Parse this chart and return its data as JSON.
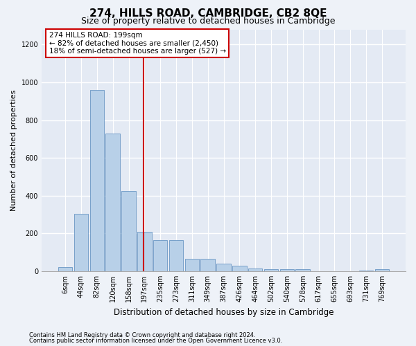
{
  "title": "274, HILLS ROAD, CAMBRIDGE, CB2 8QE",
  "subtitle": "Size of property relative to detached houses in Cambridge",
  "xlabel": "Distribution of detached houses by size in Cambridge",
  "ylabel": "Number of detached properties",
  "footnote1": "Contains HM Land Registry data © Crown copyright and database right 2024.",
  "footnote2": "Contains public sector information licensed under the Open Government Licence v3.0.",
  "annotation_line1": "274 HILLS ROAD: 199sqm",
  "annotation_line2": "← 82% of detached houses are smaller (2,450)",
  "annotation_line3": "18% of semi-detached houses are larger (527) →",
  "bar_labels": [
    "6sqm",
    "44sqm",
    "82sqm",
    "120sqm",
    "158sqm",
    "197sqm",
    "235sqm",
    "273sqm",
    "311sqm",
    "349sqm",
    "387sqm",
    "426sqm",
    "464sqm",
    "502sqm",
    "540sqm",
    "578sqm",
    "617sqm",
    "655sqm",
    "693sqm",
    "731sqm",
    "769sqm"
  ],
  "bar_values": [
    20,
    305,
    960,
    730,
    425,
    210,
    165,
    165,
    65,
    65,
    40,
    30,
    15,
    10,
    10,
    10,
    0,
    0,
    0,
    5,
    10
  ],
  "bar_color": "#b8d0e8",
  "bar_edge_color": "#5588bb",
  "vline_x_index": 5,
  "vline_color": "#cc0000",
  "ylim": [
    0,
    1280
  ],
  "yticks": [
    0,
    200,
    400,
    600,
    800,
    1000,
    1200
  ],
  "bg_color": "#eef2f8",
  "plot_bg_color": "#e4eaf4",
  "grid_color": "#ffffff",
  "annotation_box_color": "#cc0000",
  "annotation_bg": "#ffffff",
  "title_fontsize": 11,
  "subtitle_fontsize": 9,
  "ylabel_fontsize": 8,
  "xlabel_fontsize": 8.5,
  "tick_fontsize": 7,
  "footnote_fontsize": 6
}
